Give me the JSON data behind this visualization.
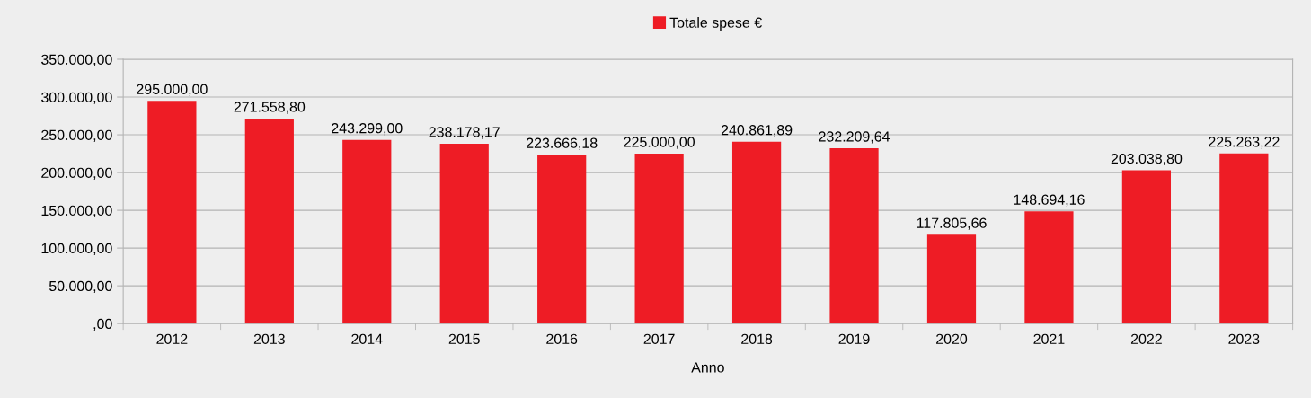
{
  "chart_data": {
    "type": "bar",
    "xlabel": "Anno",
    "categories": [
      "2012",
      "2013",
      "2014",
      "2015",
      "2016",
      "2017",
      "2018",
      "2019",
      "2020",
      "2021",
      "2022",
      "2023"
    ],
    "series": [
      {
        "name": "Totale spese €",
        "color": "#ee1c25",
        "values": [
          295000.0,
          271558.8,
          243299.0,
          238178.17,
          223666.18,
          225000.0,
          240861.89,
          232209.64,
          117805.66,
          148694.16,
          203038.8,
          225263.22
        ],
        "value_labels": [
          "295.000,00",
          "271.558,80",
          "243.299,00",
          "238.178,17",
          "223.666,18",
          "225.000,00",
          "240.861,89",
          "232.209,64",
          "117.805,66",
          "148.694,16",
          "203.038,80",
          "225.263,22"
        ]
      }
    ],
    "ylim": [
      0,
      350000
    ],
    "yticks": [
      {
        "value": 0,
        "label": ",00"
      },
      {
        "value": 50000,
        "label": "50.000,00"
      },
      {
        "value": 100000,
        "label": "100.000,00"
      },
      {
        "value": 150000,
        "label": "150.000,00"
      },
      {
        "value": 200000,
        "label": "200.000,00"
      },
      {
        "value": 250000,
        "label": "250.000,00"
      },
      {
        "value": 300000,
        "label": "300.000,00"
      },
      {
        "value": 350000,
        "label": "350.000,00"
      }
    ],
    "grid": "y",
    "legend": "top"
  }
}
